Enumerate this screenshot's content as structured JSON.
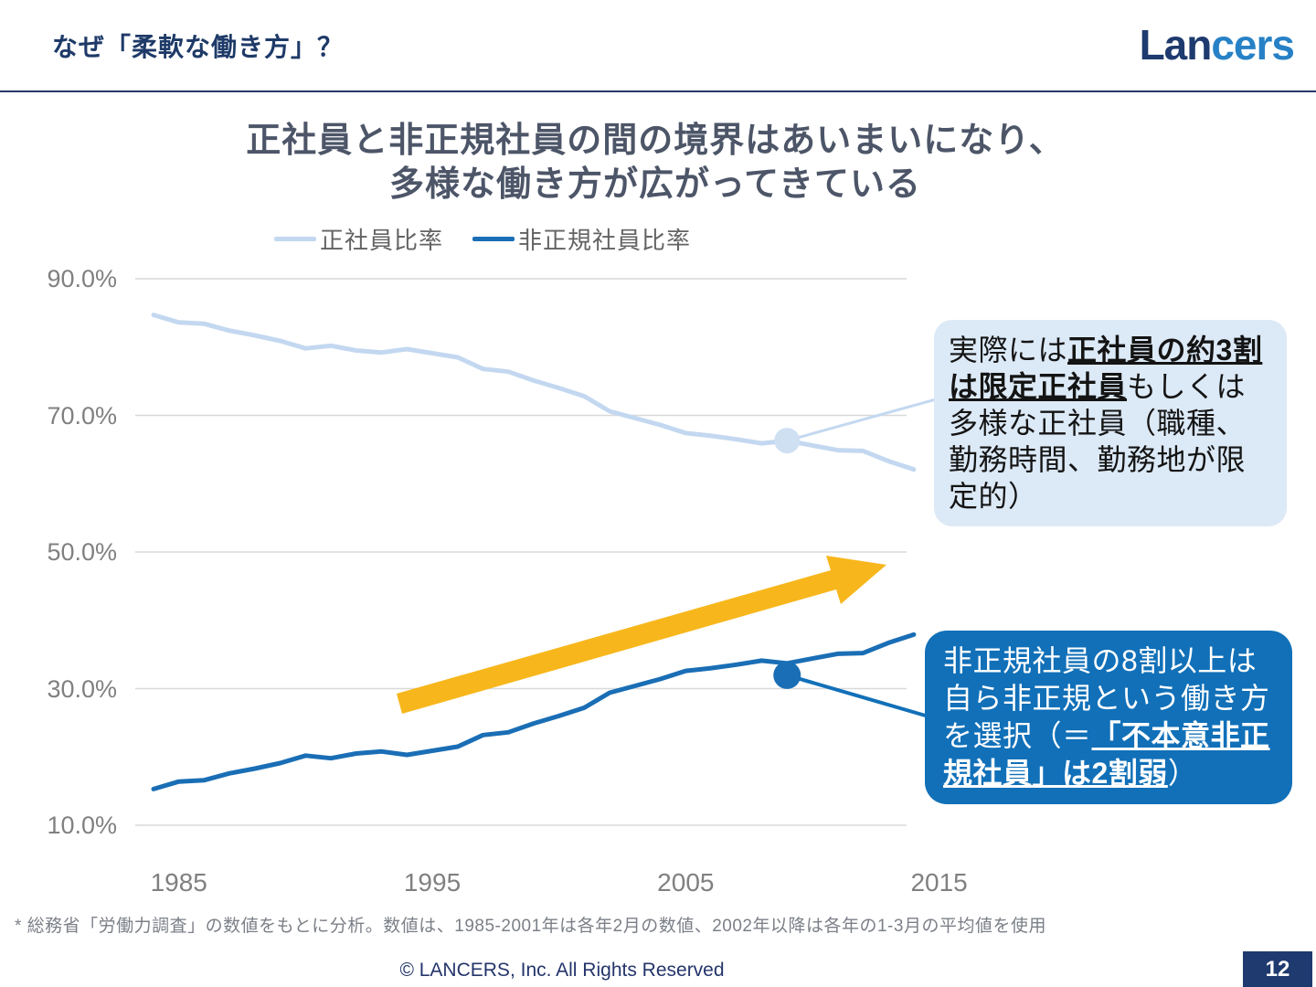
{
  "header": {
    "title": "なぜ「柔軟な働き方」？",
    "logo": {
      "part1": "Lan",
      "part2": "cers"
    }
  },
  "chart": {
    "title_line1": "正社員と非正規社員の間の境界はあいまいになり、",
    "title_line2": "多様な働き方が広がってきている"
  },
  "chart_data": {
    "type": "line",
    "x": [
      1984,
      1985,
      1986,
      1987,
      1988,
      1989,
      1990,
      1991,
      1992,
      1993,
      1994,
      1995,
      1996,
      1997,
      1998,
      1999,
      2000,
      2001,
      2002,
      2003,
      2004,
      2005,
      2006,
      2007,
      2008,
      2009,
      2010,
      2011,
      2012,
      2013,
      2014
    ],
    "series": [
      {
        "name": "正社員比率",
        "color": "#c3d8f0",
        "values": [
          84.7,
          83.6,
          83.4,
          82.4,
          81.7,
          80.9,
          79.8,
          80.2,
          79.5,
          79.2,
          79.7,
          79.1,
          78.5,
          76.8,
          76.4,
          75.1,
          74.0,
          72.8,
          70.6,
          69.6,
          68.6,
          67.4,
          67.0,
          66.5,
          65.9,
          66.3,
          65.6,
          64.9,
          64.8,
          63.3,
          62.1
        ]
      },
      {
        "name": "非正規社員比率",
        "color": "#1a6eb5",
        "values": [
          15.3,
          16.4,
          16.6,
          17.6,
          18.3,
          19.1,
          20.2,
          19.8,
          20.5,
          20.8,
          20.3,
          20.9,
          21.5,
          23.2,
          23.6,
          24.9,
          26.0,
          27.2,
          29.4,
          30.4,
          31.4,
          32.6,
          33.0,
          33.5,
          34.1,
          33.7,
          34.4,
          35.1,
          35.2,
          36.7,
          37.9
        ]
      }
    ],
    "ylim": [
      10,
      90
    ],
    "y_ticks": [
      {
        "value": 90,
        "label": "90.0%"
      },
      {
        "value": 70,
        "label": "70.0%"
      },
      {
        "value": 50,
        "label": "50.0%"
      },
      {
        "value": 30,
        "label": "30.0%"
      },
      {
        "value": 10,
        "label": "10.0%"
      }
    ],
    "x_ticks": [
      {
        "value": 1985,
        "label": "1985"
      },
      {
        "value": 1995,
        "label": "1995"
      },
      {
        "value": 2005,
        "label": "2005"
      },
      {
        "value": 2015,
        "label": "2015"
      }
    ],
    "grid": "horizontal",
    "legend_position": "top",
    "annotations": {
      "marker_year": 2009,
      "marker_colors": {
        "regular": "#cfe0f3",
        "nonregular": "#1a6eb5"
      },
      "trend_arrow": {
        "meaning": "upward-trend",
        "color": "#f7b71c"
      }
    }
  },
  "callout_regular": {
    "pre": "実際には",
    "em": "正社員の約3割は限定正社員",
    "post": "もしくは多様な正社員（職種、勤務時間、勤務地が限定的）",
    "bg": "#dce9f6"
  },
  "callout_nonregular": {
    "pre": "非正規社員の8割以上は自ら非正規という働き方を選択（＝",
    "em": "「不本意非正規社員」は2割弱",
    "post": "）",
    "bg": "#1170b8"
  },
  "footnote": "* 総務省「労働力調査」の数値をもとに分析。数値は、1985-2001年は各年2月の数値、2002年以降は各年の1-3月の平均値を使用",
  "footer": {
    "copyright": "© LANCERS, Inc. All Rights Reserved",
    "page": "12"
  }
}
